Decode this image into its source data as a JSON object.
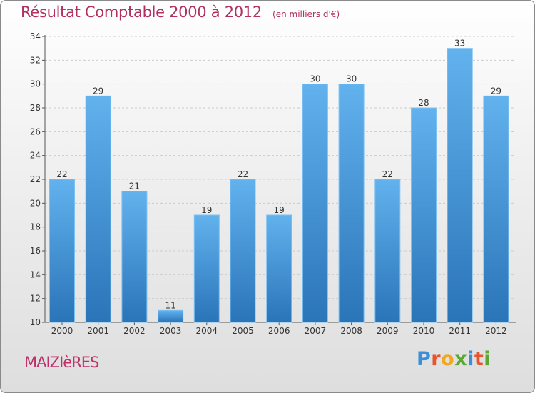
{
  "header": {
    "title": "Résultat Comptable 2000 à 2012",
    "subtitle": "(en milliers d'€)"
  },
  "footer": {
    "commune": "MAIZIèRES",
    "brand_letters": [
      "P",
      "r",
      "o",
      "x",
      "i",
      "t",
      "i"
    ],
    "brand_colors": [
      "#3a8fd8",
      "#e8542c",
      "#f2a81d",
      "#5aa832",
      "#3a8fd8",
      "#e8542c",
      "#5aa832"
    ]
  },
  "chart_data": {
    "type": "bar",
    "categories": [
      "2000",
      "2001",
      "2002",
      "2003",
      "2004",
      "2005",
      "2006",
      "2007",
      "2008",
      "2009",
      "2010",
      "2011",
      "2012"
    ],
    "values": [
      22,
      29,
      21,
      11,
      19,
      22,
      19,
      30,
      30,
      22,
      28,
      33,
      29
    ],
    "ylim": [
      10,
      34
    ],
    "yticks": [
      10,
      12,
      14,
      16,
      18,
      20,
      22,
      24,
      26,
      28,
      30,
      32,
      34
    ],
    "grid": true,
    "bar_color_top": "#62b2ee",
    "bar_color_bottom": "#2a74b8"
  }
}
